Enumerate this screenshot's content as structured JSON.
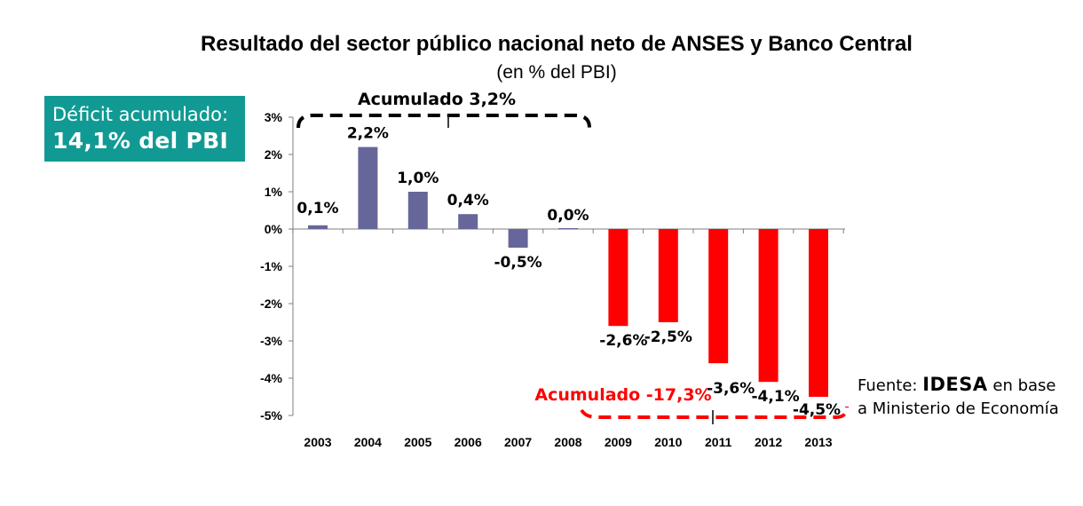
{
  "chart_data": {
    "type": "bar",
    "title": "Resultado del sector público nacional neto de ANSES y Banco Central",
    "subtitle": "(en % del PBI)",
    "categories": [
      "2003",
      "2004",
      "2005",
      "2006",
      "2007",
      "2008",
      "2009",
      "2010",
      "2011",
      "2012",
      "2013"
    ],
    "values": [
      0.1,
      2.2,
      1.0,
      0.4,
      -0.5,
      0.0,
      -2.6,
      -2.5,
      -3.6,
      -4.1,
      -4.5
    ],
    "data_labels": [
      "0,1%",
      "2,2%",
      "1,0%",
      "0,4%",
      "-0,5%",
      "0,0%",
      "-2,6%",
      "-2,5%",
      "-3,6%",
      "-4,1%",
      "-4,5%"
    ],
    "bar_colors": [
      "#67669a",
      "#67669a",
      "#67669a",
      "#67669a",
      "#67669a",
      "#67669a",
      "#ff0000",
      "#ff0000",
      "#ff0000",
      "#ff0000",
      "#ff0000"
    ],
    "ylim": [
      -5,
      3
    ],
    "y_ticks": [
      3,
      2,
      1,
      0,
      -1,
      -2,
      -3,
      -4,
      -5
    ],
    "y_tick_labels": [
      "3%",
      "2%",
      "1%",
      "0%",
      "-1%",
      "-2%",
      "-3%",
      "-4%",
      "-5%"
    ],
    "grid": false,
    "annotations": [
      {
        "text": "Acumulado 3,2%",
        "color": "#000000",
        "years": [
          "2003",
          "2008"
        ],
        "position": "top"
      },
      {
        "text": "Acumulado -17,3%",
        "color": "#ff0000",
        "years": [
          "2009",
          "2013"
        ],
        "position": "bottom"
      }
    ]
  },
  "deficit_box": {
    "line1": "Déficit acumulado:",
    "line2": "14,1% del PBI",
    "color": "#119a94"
  },
  "source": {
    "prefix": "Fuente: ",
    "org": "IDESA",
    "suffix": " en base a Ministerio de Economía"
  }
}
